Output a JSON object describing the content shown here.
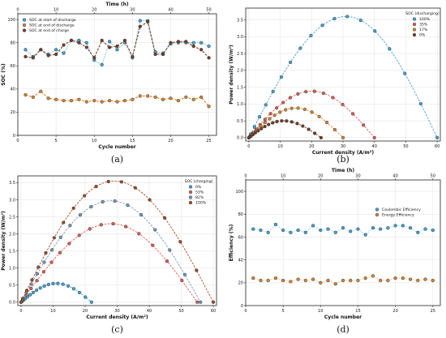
{
  "colors": {
    "blue": "#4a9fc8",
    "orange": "#d9822b",
    "dark_brown": "#7a3a1e",
    "red": "#e05a4f",
    "dark_orange": "#a34b20"
  },
  "chart_data": [
    {
      "id": "a",
      "caption": "(a)",
      "type": "line",
      "xlabel": "Cycle number",
      "ylabel": "SOC (%)",
      "x2label": "Time (h)",
      "xlim": [
        0,
        26
      ],
      "ylim": [
        0,
        105
      ],
      "x2lim": [
        0,
        52
      ],
      "xticks": [
        0,
        5,
        10,
        15,
        20,
        25
      ],
      "yticks": [
        0,
        20,
        40,
        60,
        80,
        100
      ],
      "x2ticks": [
        0,
        10,
        20,
        30,
        40,
        50
      ],
      "legend_position": "top-left",
      "series": [
        {
          "name": "SOC at start of discharge",
          "color": "#4a9fc8",
          "style": "dotted",
          "x": [
            1,
            2,
            3,
            4,
            5,
            6,
            7,
            8,
            9,
            10,
            11,
            12,
            13,
            14,
            15,
            16,
            17,
            18,
            19,
            20,
            21,
            22,
            23,
            24,
            25
          ],
          "y": [
            74,
            68,
            74,
            70,
            74,
            71,
            82,
            82,
            80,
            65,
            61,
            81,
            74,
            80,
            67,
            99,
            99,
            72,
            71,
            79,
            80,
            80,
            80,
            80,
            77
          ]
        },
        {
          "name": "SOC at end of discharge",
          "color": "#d9822b",
          "style": "dashed",
          "x": [
            1,
            2,
            3,
            4,
            5,
            6,
            7,
            8,
            9,
            10,
            11,
            12,
            13,
            14,
            15,
            16,
            17,
            18,
            19,
            20,
            21,
            22,
            23,
            24,
            25
          ],
          "y": [
            35,
            33,
            38,
            32,
            31,
            30,
            30,
            31,
            29,
            30,
            29,
            30,
            29,
            30,
            31,
            34,
            34,
            33,
            31,
            32,
            30,
            33,
            31,
            33,
            25
          ]
        },
        {
          "name": "SOC at end of charge",
          "color": "#7a3a1e",
          "style": "dashed",
          "x": [
            1,
            2,
            3,
            4,
            5,
            6,
            7,
            8,
            9,
            10,
            11,
            12,
            13,
            14,
            15,
            16,
            17,
            18,
            19,
            20,
            21,
            22,
            23,
            24,
            25
          ],
          "y": [
            68,
            67,
            74,
            69,
            70,
            78,
            82,
            80,
            76,
            67,
            82,
            76,
            77,
            82,
            68,
            94,
            98,
            70,
            70,
            80,
            81,
            81,
            77,
            74,
            67
          ]
        }
      ]
    },
    {
      "id": "b",
      "caption": "(b)",
      "type": "scatter",
      "xlabel": "Current density (A/m²)",
      "ylabel": "Power density (W/m²)",
      "xlim": [
        -1,
        61
      ],
      "ylim": [
        -0.1,
        3.85
      ],
      "xticks": [
        0,
        10,
        20,
        30,
        40,
        50,
        60
      ],
      "yticks": [
        0.0,
        0.5,
        1.0,
        1.5,
        2.0,
        2.5,
        3.0,
        3.5
      ],
      "legend_title": "SOC (discharging)",
      "legend_position": "top-right",
      "series": [
        {
          "name": "100%",
          "color": "#4a9fc8",
          "pmax": 3.6,
          "xmax": 60,
          "xpeak": 31
        },
        {
          "name": "35%",
          "color": "#e05a4f",
          "pmax": 1.38,
          "xmax": 40,
          "xpeak": 20
        },
        {
          "name": "17%",
          "color": "#d9822b",
          "pmax": 0.88,
          "xmax": 30,
          "xpeak": 15
        },
        {
          "name": "0%",
          "color": "#7a3a1e",
          "pmax": 0.5,
          "xmax": 23,
          "xpeak": 11
        }
      ]
    },
    {
      "id": "c",
      "caption": "(c)",
      "type": "scatter",
      "xlabel": "Current density (A/m²)",
      "ylabel": "Power density (W/m²)",
      "xlim": [
        -1,
        61
      ],
      "ylim": [
        -0.1,
        3.7
      ],
      "xticks": [
        0,
        10,
        20,
        30,
        40,
        50,
        60
      ],
      "yticks": [
        0.0,
        0.5,
        1.0,
        1.5,
        2.0,
        2.5,
        3.0,
        3.5
      ],
      "legend_title": "SOC (charging)",
      "legend_position": "top-right",
      "series": [
        {
          "name": "0%",
          "color": "#4a9fc8",
          "pmax": 0.55,
          "xmax": 22,
          "xpeak": 11
        },
        {
          "name": "53%",
          "color": "#e05a4f",
          "pmax": 2.3,
          "xmax": 55,
          "xpeak": 28
        },
        {
          "name": "82%",
          "color": "#7a96b0",
          "pmax": 2.97,
          "xmax": 56,
          "xpeak": 28
        },
        {
          "name": "100%",
          "color": "#a34b20",
          "pmax": 3.55,
          "xmax": 60,
          "xpeak": 29
        }
      ]
    },
    {
      "id": "d",
      "caption": "(d)",
      "type": "scatter",
      "xlabel": "Cycle number",
      "ylabel": "Efficiency (%)",
      "x2label": "Time (h)",
      "xlim": [
        0,
        26
      ],
      "ylim": [
        0,
        110
      ],
      "x2lim": [
        0,
        52
      ],
      "xticks": [
        0,
        5,
        10,
        15,
        20,
        25
      ],
      "yticks": [
        0,
        20,
        40,
        60,
        80,
        100
      ],
      "x2ticks": [
        0,
        10,
        20,
        30,
        40,
        50
      ],
      "legend_position": "top-right",
      "series": [
        {
          "name": "Coulombic Efficiency",
          "color": "#4a9fc8",
          "x": [
            1,
            2,
            3,
            4,
            5,
            6,
            7,
            8,
            9,
            10,
            11,
            12,
            13,
            14,
            15,
            16,
            17,
            18,
            19,
            20,
            21,
            22,
            23,
            24,
            25
          ],
          "y": [
            67,
            66,
            64,
            71,
            66,
            64,
            66,
            64,
            70,
            66,
            67,
            64,
            68,
            65,
            67,
            62,
            68,
            67,
            68,
            70,
            70,
            68,
            64,
            67,
            66
          ]
        },
        {
          "name": "Energy Efficiency",
          "color": "#d9822b",
          "x": [
            1,
            2,
            3,
            4,
            5,
            6,
            7,
            8,
            9,
            10,
            11,
            12,
            13,
            14,
            15,
            16,
            17,
            18,
            19,
            20,
            21,
            22,
            23,
            24,
            25
          ],
          "y": [
            24,
            22,
            22,
            24,
            22,
            21,
            23,
            22,
            23,
            20,
            22,
            19,
            22,
            22,
            22,
            24,
            26,
            22,
            22,
            24,
            24,
            23,
            22,
            23,
            22
          ]
        }
      ]
    }
  ]
}
